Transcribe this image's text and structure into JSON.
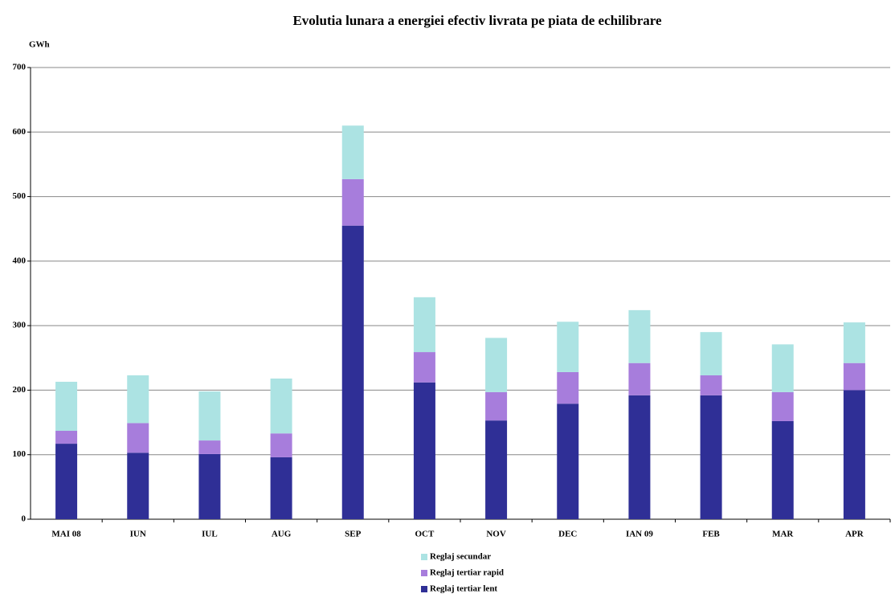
{
  "chart_data": {
    "type": "stacked-bar",
    "title": "Evolutia lunara a energiei efectiv livrata pe piata de echilibrare",
    "y_label": "GWh",
    "categories": [
      "MAI 08",
      "IUN",
      "IUL",
      "AUG",
      "SEP",
      "OCT",
      "NOV",
      "DEC",
      "IAN 09",
      "FEB",
      "MAR",
      "APR"
    ],
    "series": [
      {
        "name": "Reglaj tertiar lent",
        "color": "#2f2f96",
        "values": [
          117,
          103,
          101,
          96,
          455,
          212,
          153,
          179,
          192,
          192,
          152,
          200
        ]
      },
      {
        "name": "Reglaj tertiar rapid",
        "color": "#a77ddc",
        "values": [
          20,
          46,
          21,
          37,
          72,
          47,
          44,
          49,
          50,
          31,
          45,
          42
        ]
      },
      {
        "name": "Reglaj secundar",
        "color": "#ace3e3",
        "values": [
          76,
          74,
          76,
          85,
          83,
          85,
          84,
          78,
          82,
          67,
          74,
          63
        ]
      }
    ],
    "ylim": [
      0,
      700
    ],
    "yticks": [
      0,
      100,
      200,
      300,
      400,
      500,
      600,
      700
    ],
    "grid": true
  }
}
